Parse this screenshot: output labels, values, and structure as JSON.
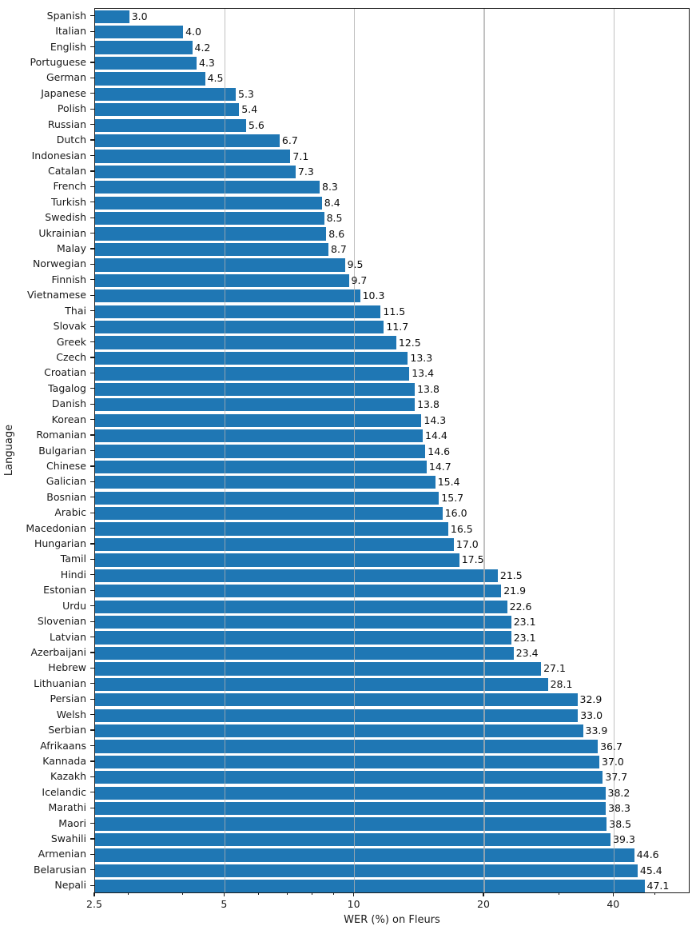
{
  "chart_data": {
    "type": "bar",
    "orientation": "horizontal",
    "xlabel": "WER (%) on Fleurs",
    "ylabel": "Language",
    "x_scale": "log",
    "xlim": [
      2.5,
      60.2
    ],
    "x_ticks": [
      2.5,
      5,
      10,
      20,
      40
    ],
    "x_minor_ticks": [
      3,
      4,
      6,
      7,
      8,
      9,
      30,
      50
    ],
    "grid": true,
    "grid_over_bars": true,
    "bar_color": "#1f77b4",
    "grid_color": "#b0b0b0",
    "categories": [
      "Spanish",
      "Italian",
      "English",
      "Portuguese",
      "German",
      "Japanese",
      "Polish",
      "Russian",
      "Dutch",
      "Indonesian",
      "Catalan",
      "French",
      "Turkish",
      "Swedish",
      "Ukrainian",
      "Malay",
      "Norwegian",
      "Finnish",
      "Vietnamese",
      "Thai",
      "Slovak",
      "Greek",
      "Czech",
      "Croatian",
      "Tagalog",
      "Danish",
      "Korean",
      "Romanian",
      "Bulgarian",
      "Chinese",
      "Galician",
      "Bosnian",
      "Arabic",
      "Macedonian",
      "Hungarian",
      "Tamil",
      "Hindi",
      "Estonian",
      "Urdu",
      "Slovenian",
      "Latvian",
      "Azerbaijani",
      "Hebrew",
      "Lithuanian",
      "Persian",
      "Welsh",
      "Serbian",
      "Afrikaans",
      "Kannada",
      "Kazakh",
      "Icelandic",
      "Marathi",
      "Maori",
      "Swahili",
      "Armenian",
      "Belarusian",
      "Nepali"
    ],
    "values": [
      3.0,
      4.0,
      4.2,
      4.3,
      4.5,
      5.3,
      5.4,
      5.6,
      6.7,
      7.1,
      7.3,
      8.3,
      8.4,
      8.5,
      8.6,
      8.7,
      9.5,
      9.7,
      10.3,
      11.5,
      11.7,
      12.5,
      13.3,
      13.4,
      13.8,
      13.8,
      14.3,
      14.4,
      14.6,
      14.7,
      15.4,
      15.7,
      16.0,
      16.5,
      17.0,
      17.5,
      21.5,
      21.9,
      22.6,
      23.1,
      23.1,
      23.4,
      27.1,
      28.1,
      32.9,
      33.0,
      33.9,
      36.7,
      37.0,
      37.7,
      38.2,
      38.3,
      38.5,
      39.3,
      44.6,
      45.4,
      47.1
    ]
  }
}
